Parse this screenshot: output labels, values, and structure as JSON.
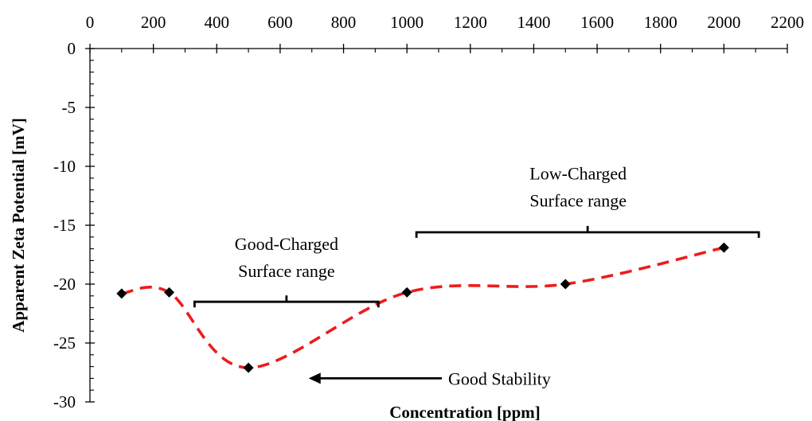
{
  "chart_data": {
    "type": "scatter",
    "title": "",
    "xlabel": "Concentration [ppm]",
    "ylabel": "Apparent Zeta Potential [mV]",
    "xlim": [
      0,
      2200
    ],
    "ylim": [
      -30,
      0
    ],
    "x_ticks": [
      0,
      200,
      400,
      600,
      800,
      1000,
      1200,
      1400,
      1600,
      1800,
      2000,
      2200
    ],
    "x_tick_labels": [
      "0",
      "200",
      "400",
      "600",
      "800",
      "1000",
      "1200",
      "1400",
      "1600",
      "1800",
      "2000",
      "2200"
    ],
    "y_ticks": [
      0,
      -5,
      -10,
      -15,
      -20,
      -25,
      -30
    ],
    "y_tick_labels": [
      "0",
      "-5",
      "-10",
      "-15",
      "-20",
      "-25",
      "-30"
    ],
    "x_axis_position": "top",
    "grid": false,
    "series": [
      {
        "x": [
          100,
          250,
          500,
          1000,
          1500,
          2000
        ],
        "y": [
          -20.8,
          -20.7,
          -27.1,
          -20.7,
          -20.0,
          -16.9
        ],
        "marker": "diamond",
        "marker_color": "#000000",
        "line_style": "dashed",
        "line_color": "#ee1c1c",
        "smooth": true
      }
    ],
    "annotations": [
      {
        "lines": [
          "Good-Charged",
          "Surface range"
        ],
        "bracket_x": [
          330,
          910
        ],
        "bracket_y": -21.5,
        "text_x": 620,
        "text_y": [
          -17.1,
          -19.4
        ]
      },
      {
        "lines": [
          "Low-Charged",
          "Surface range"
        ],
        "bracket_x": [
          1030,
          2110
        ],
        "bracket_y": -15.6,
        "text_x": 1540,
        "text_y": [
          -11.1,
          -13.4
        ]
      },
      {
        "lines": [
          "Good Stability"
        ],
        "arrow_from": [
          1110,
          -28.0
        ],
        "arrow_to": [
          690,
          -28.0
        ],
        "text_x": 1130,
        "text_y": [
          -28.0
        ]
      }
    ]
  }
}
